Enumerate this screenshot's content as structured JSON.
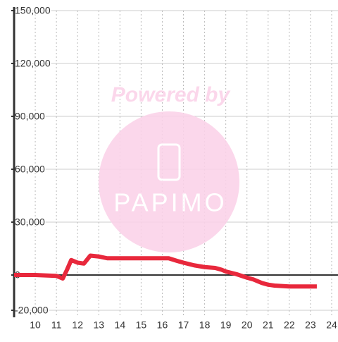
{
  "chart_data": {
    "type": "line",
    "x": [
      9.0,
      10.0,
      11.0,
      11.3,
      11.5,
      11.7,
      12.0,
      12.3,
      12.6,
      13.0,
      13.4,
      14.0,
      15.0,
      16.0,
      16.3,
      16.7,
      17.0,
      17.5,
      18.0,
      18.5,
      18.8,
      19.0,
      19.5,
      20.0,
      20.3,
      20.7,
      21.0,
      21.3,
      22.0,
      23.3
    ],
    "series": [
      {
        "color": "#e8283c",
        "values": [
          0,
          0,
          -500,
          -2000,
          3000,
          8500,
          7000,
          6500,
          11000,
          10500,
          9500,
          9500,
          9500,
          9500,
          9500,
          8000,
          7000,
          5500,
          4500,
          4000,
          3000,
          2000,
          500,
          -1500,
          -2500,
          -4500,
          -5500,
          -6000,
          -6500,
          -6500
        ]
      }
    ],
    "xlim": [
      9,
      24.3
    ],
    "xticks": [
      10,
      11,
      12,
      13,
      14,
      15,
      16,
      17,
      18,
      19,
      20,
      21,
      22,
      23,
      24
    ],
    "ylim": [
      -24000,
      150000
    ],
    "yticks": [
      {
        "value": -20000,
        "label": "-20,000"
      },
      0,
      {
        "value": 30000,
        "label": "30,000"
      },
      {
        "value": 60000,
        "label": "60,000"
      },
      {
        "value": 90000,
        "label": "90,000"
      },
      {
        "value": 120000,
        "label": "120,000"
      },
      {
        "value": 150000,
        "label": "150,000"
      }
    ],
    "grid": true,
    "watermark": {
      "text": "Powered by",
      "logo": "PAPIMO"
    }
  }
}
